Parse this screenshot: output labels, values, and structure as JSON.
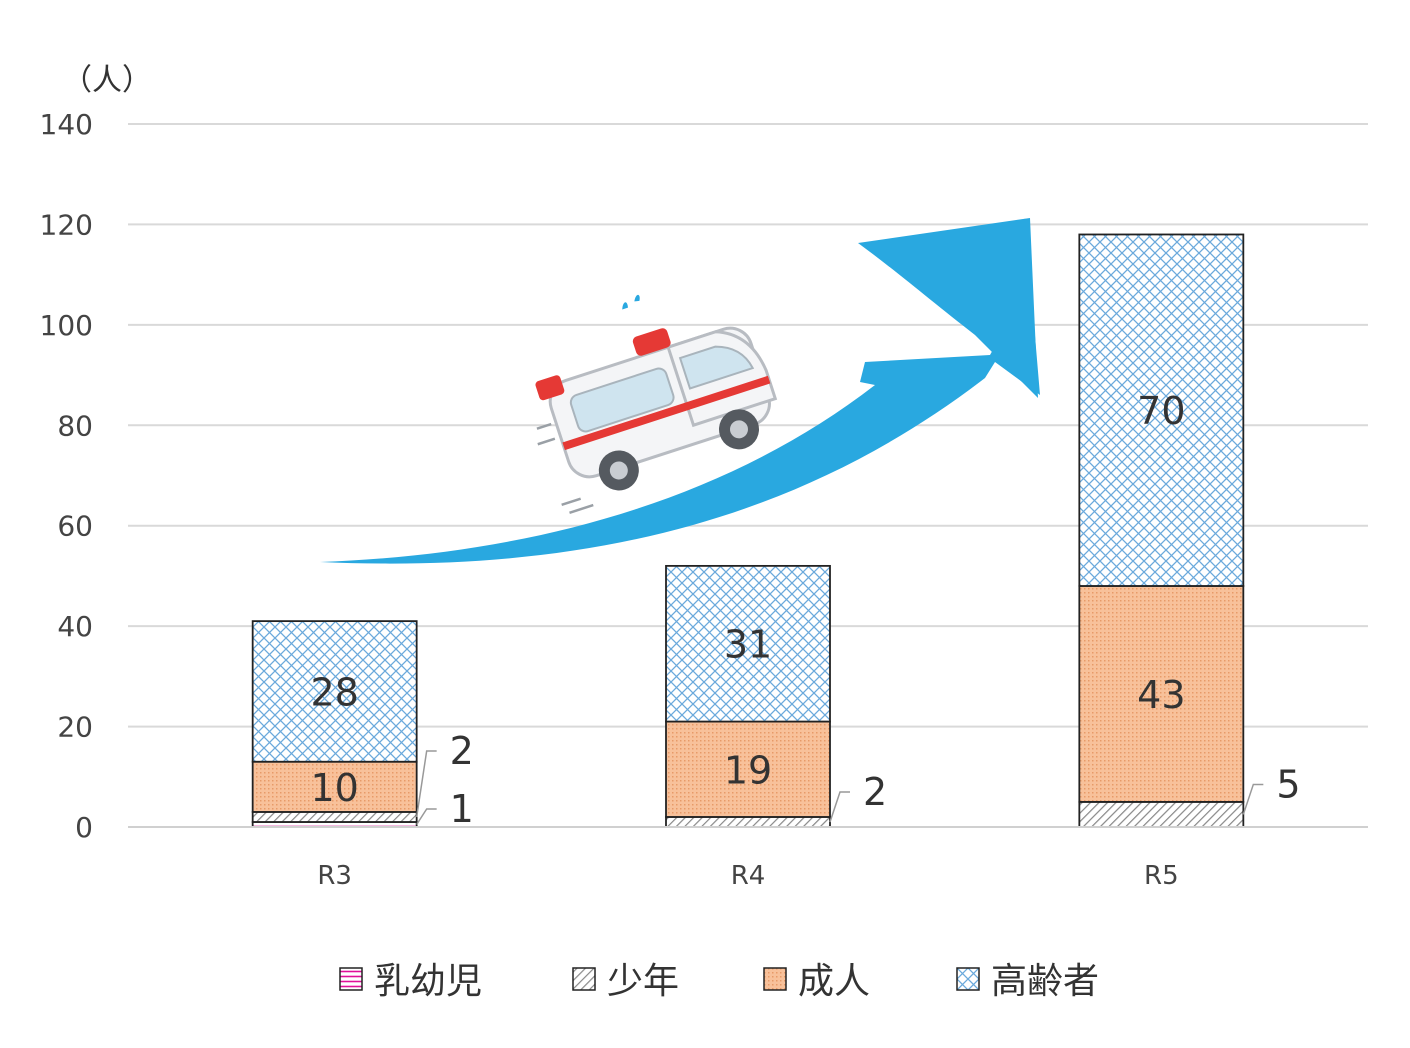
{
  "chart_data": {
    "type": "bar",
    "stacked": true,
    "ylabel": "（人）",
    "ylim": [
      0,
      140
    ],
    "yticks": [
      0,
      20,
      40,
      60,
      80,
      100,
      120,
      140
    ],
    "grid": true,
    "legend_position": "bottom",
    "categories": [
      "R3",
      "R4",
      "R5"
    ],
    "series": [
      {
        "name": "乳幼児",
        "values": [
          1,
          0,
          0
        ],
        "color": "#e0109a",
        "pattern": "horizontal-lines"
      },
      {
        "name": "少年",
        "values": [
          2,
          2,
          5
        ],
        "color": "#999999",
        "pattern": "diagonal-lines"
      },
      {
        "name": "成人",
        "values": [
          10,
          19,
          43
        ],
        "color": "#f6b78b",
        "pattern": "dots"
      },
      {
        "name": "高齢者",
        "values": [
          28,
          31,
          70
        ],
        "color": "#6aa9dc",
        "pattern": "crosshatch"
      }
    ],
    "data_labels": [
      {
        "category": "R3",
        "series": "高齢者",
        "text": "28",
        "placement": "inside"
      },
      {
        "category": "R3",
        "series": "成人",
        "text": "10",
        "placement": "inside"
      },
      {
        "category": "R3",
        "series": "少年",
        "text": "2",
        "placement": "callout"
      },
      {
        "category": "R3",
        "series": "乳幼児",
        "text": "1",
        "placement": "callout"
      },
      {
        "category": "R4",
        "series": "高齢者",
        "text": "31",
        "placement": "inside"
      },
      {
        "category": "R4",
        "series": "成人",
        "text": "19",
        "placement": "inside"
      },
      {
        "category": "R4",
        "series": "少年",
        "text": "2",
        "placement": "callout"
      },
      {
        "category": "R5",
        "series": "高齢者",
        "text": "70",
        "placement": "inside"
      },
      {
        "category": "R5",
        "series": "成人",
        "text": "43",
        "placement": "inside"
      },
      {
        "category": "R5",
        "series": "少年",
        "text": "5",
        "placement": "callout"
      }
    ],
    "decorations": {
      "trend_arrow_color": "#29a8e0",
      "icon": "ambulance-icon"
    }
  }
}
